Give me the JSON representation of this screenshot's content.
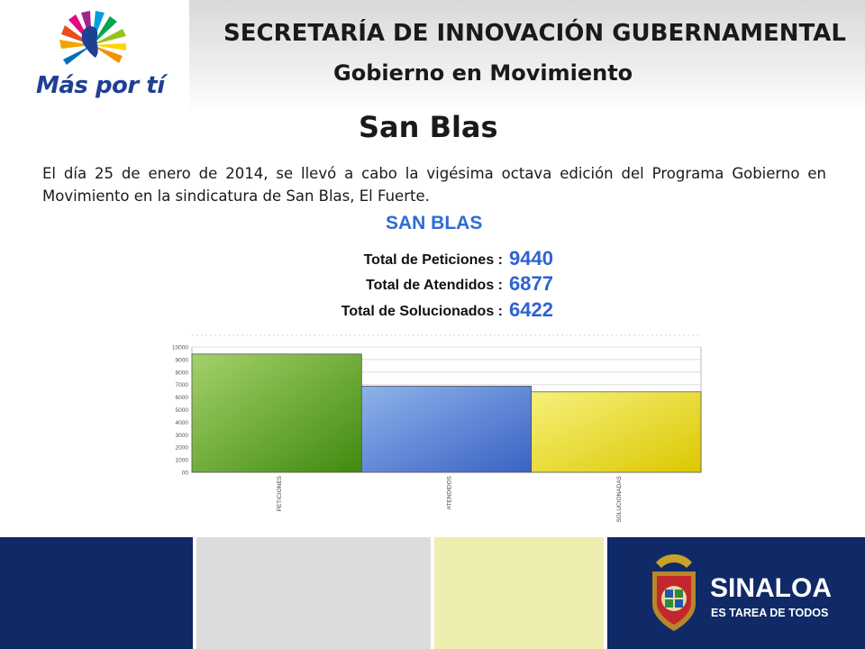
{
  "header": {
    "logo_text": "Más por tí",
    "title": "SECRETARÍA DE INNOVACIÓN GUBERNAMENTAL",
    "subtitle": "Gobierno en Movimiento"
  },
  "place_title": "San Blas",
  "paragraph": "El día 25 de enero de 2014, se llevó a cabo la vigésima octava edición del Programa Gobierno en Movimiento en la sindicatura de San Blas, El Fuerte.",
  "stats": {
    "title": "SAN BLAS",
    "items": [
      {
        "label": "Total de Peticiones :",
        "value": "9440"
      },
      {
        "label": "Total de Atendidos :",
        "value": "6877"
      },
      {
        "label": "Total de Solucionados :",
        "value": "6422"
      }
    ]
  },
  "chart_data": {
    "type": "bar",
    "title": "SAN BLAS",
    "categories": [
      "PETICIONES",
      "ATENDIDOS",
      "SOLUCIONADAS"
    ],
    "values": [
      9440,
      6877,
      6422
    ],
    "ylim": [
      0,
      10000
    ],
    "yticks": [
      "00",
      "1000",
      "2000",
      "3000",
      "4000",
      "5000",
      "6000",
      "7000",
      "8000",
      "9000",
      "10000"
    ],
    "grid": true,
    "colors": [
      [
        "#a4d16a",
        "#3f8a10"
      ],
      [
        "#8db3ea",
        "#3a62c4"
      ],
      [
        "#f6f07a",
        "#dcc800"
      ]
    ]
  },
  "footer": {
    "brand": "SINALOA",
    "tagline": "ES TAREA DE TODOS",
    "colors": [
      "#0f2a66",
      "#dcdcdc",
      "#ededb0",
      "#0f2a66"
    ]
  }
}
